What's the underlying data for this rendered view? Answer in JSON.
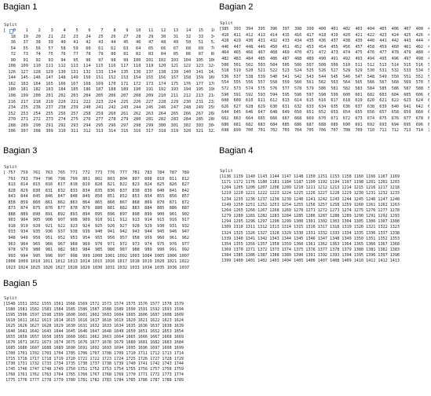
{
  "sections": [
    {
      "title": "Bagian 1",
      "label": "Split",
      "rows": [
        "[   0    1    2    3    4    5    6    7    8    9   10   11   12   13   14   15   16   17",
        "   18   19   20   21   22   23   24   25   26   27   28   29   30   31   32   33   34   35",
        "   36   37   38   39   40   41   42   43   44   45   46   47   48   49   50   51   52   53",
        "   54   55   56   57   58   59   60   61   62   63   64   65   66   67   68   69   70   71",
        "   72   73   74   75   76   77   78   79   80   81   82   83   84   85   86   87   88   89",
        "   90   91   92   93   94   95   96   97   98   99  100  101  102  103  104  105  106  107",
        "  108  109  110  111  112  113  114  115  116  117  118  119  120  121  122  123  124  125",
        "  126  127  128  129  130  131  132  133  134  135  136  137  138  139  140  141  142  143",
        "  144  145  146  147  148  149  150  151  152  153  154  155  156  157  158  159  160  161",
        "  162  163  164  165  166  167  168  169  170  171  172  173  174  175  176  177  178  179",
        "  180  181  182  183  184  185  186  187  188  189  190  191  192  193  194  195  196  197",
        "  198  199  200  201  202  203  204  205  206  207  208  209  210  211  212  213  214  215",
        "  216  217  218  219  220  221  222  223  224  225  226  227  228  229  230  231  232  233",
        "  234  235  236  237  238  239  240  241  242  243  244  245  246  247  248  249  250  251",
        "  252  253  254  255  256  257  258  259  260  261  262  263  264  265  266  267  268  269",
        "  270  271  272  273  274  275  276  277  278  279  280  281  282  283  284  285  286  287",
        "  288  289  290  291  292  293  294  295  296  297  298  299  300  301  302  303  304  305",
        "  306  307  308  309  310  311  312  313  314  315  316  317  318  319  320  321  322  323"
      ]
    },
    {
      "title": "Bagian 2",
      "label": "Split",
      "rows": [
        "[385  393  394  395  396  397  398  399  400  401  402  403  404  405  406  407  408  409",
        " 410  411  412  413  414  415  416  417  418  419  420  421  422  423  424  425  426  427",
        " 428  429  430  431  432  433  434  435  436  437  438  439  440  441  442  443  444  445",
        " 446  447  448  449  450  451  452  453  454  455  456  457  458  459  460  461  462  463",
        " 464  465  466  467  468  469  470  471  472  473  474  475  476  477  478  479  480  481",
        " 482  483  484  485  486  487  488  489  490  491  492  493  494  495  496  497  498  499",
        " 500  501  502  503  504  505  506  507  508  509  510  511  512  513  514  515  516  517",
        " 518  519  520  521  522  523  524  525  526  527  528  529  530  531  532  533  534  535",
        " 536  537  538  539  540  541  542  543  544  545  546  547  548  549  550  551  552  553",
        " 554  555  556  557  558  559  560  561  562  563  564  565  566  567  568  569  570  571",
        " 572  573  574  575  576  577  578  579  580  581  582  583  584  585  586  587  588  589",
        " 590  591  592  593  594  595  596  597  598  599  600  601  602  603  604  605  606  607",
        " 608  609  610  611  612  613  614  615  616  617  618  619  620  621  622  623  624  625",
        " 626  627  628  629  630  631  632  633  634  635  636  637  638  639  640  641  642  643",
        " 644  645  646  647  648  649  650  651  652  653  654  655  656  657  658  659  660  661",
        " 662  663  664  665  666  667  668  669  670  671  672  673  674  675  676  677  678  679",
        " 680  681  682  683  684  685  686  687  688  689  690  691  692  693  694  695  696  697",
        " 698  699  700  701  702  703  704  705  706  707  708  709  710  711  712  713  714  715"
      ]
    },
    {
      "title": "Bagian 3",
      "label": "Split",
      "rows": [
        "[ 757  759  761  763  765  771  772  773  776  777  781  783  784  787  789",
        "  791  793  794  796  798  799  801  802  803  804  807  808  810  811  812",
        "  813  814  815  816  817  818  819  820  821  822  823  824  825  826  827",
        "  828  829  830  831  832  833  834  835  836  837  838  839  840  841  842",
        "  843  844  845  846  847  848  849  850  851  852  853  854  855  856  857",
        "  858  859  860  861  862  863  864  865  866  867  868  869  870  871  872",
        "  873  874  875  876  877  878  879  880  881  882  883  884  885  886  887",
        "  888  889  890  891  892  893  894  895  896  897  898  899  900  901  902",
        "  903  904  905  906  907  908  909  910  911  912  913  914  915  916  917",
        "  918  919  920  921  922  923  924  925  926  927  928  929  930  931  932",
        "  933  934  935  936  937  938  939  940  941  942  943  944  945  946  947",
        "  948  949  950  951  952  953  954  955  956  957  958  959  960  961  962",
        "  963  964  965  966  967  968  969  970  971  972  973  974  975  976  977",
        "  978  979  980  981  982  983  984  985  986  987  988  989  990  991  992",
        "  993  994  995  996  997  998  999 1000 1001 1002 1003 1004 1005 1006 1007",
        " 1008 1009 1010 1011 1012 1013 1014 1015 1016 1017 1018 1019 1020 1021 1022",
        " 1023 1024 1025 1026 1027 1028 1029 1030 1031 1032 1033 1034 1035 1036 1037"
      ]
    },
    {
      "title": "Bagian 4",
      "label": "Split",
      "rows": [
        "[1136 1139 1140 1143 1144 1147 1148 1150 1151 1153 1158 1160 1166 1167 1169",
        " 1171 1172 1176 1180 1181 1184 1187 1190 1192 1194 1197 1198 1201 1202 1203",
        " 1204 1205 1206 1207 1208 1209 1210 1211 1212 1213 1214 1215 1216 1217 1218",
        " 1219 1220 1221 1222 1223 1224 1225 1226 1227 1228 1229 1230 1231 1232 1233",
        " 1234 1235 1236 1237 1238 1239 1240 1241 1242 1243 1244 1245 1246 1247 1248",
        " 1249 1250 1251 1252 1253 1254 1255 1256 1257 1258 1259 1260 1261 1262 1263",
        " 1264 1265 1266 1267 1268 1269 1270 1271 1272 1273 1274 1275 1276 1277 1278",
        " 1279 1280 1281 1282 1283 1284 1285 1286 1287 1288 1289 1290 1291 1292 1293",
        " 1294 1295 1296 1297 1298 1299 1300 1301 1302 1303 1304 1305 1306 1307 1308",
        " 1309 1310 1311 1312 1313 1314 1315 1316 1317 1318 1319 1320 1321 1322 1323",
        " 1324 1325 1326 1327 1328 1329 1330 1331 1332 1333 1334 1335 1336 1337 1338",
        " 1339 1340 1341 1342 1343 1344 1345 1346 1347 1348 1349 1350 1351 1352 1353",
        " 1354 1355 1356 1357 1358 1359 1360 1361 1362 1363 1364 1365 1366 1367 1368",
        " 1369 1370 1371 1372 1373 1374 1375 1376 1377 1378 1379 1380 1381 1382 1383",
        " 1384 1385 1386 1387 1388 1389 1390 1391 1392 1393 1394 1395 1396 1397 1398",
        " 1399 1400 1401 1402 1403 1404 1405 1406 1407 1408 1409 1410 1411 1412 1413"
      ]
    },
    {
      "title": "Bagian 5",
      "label": "Split",
      "rows": [
        "[1548 1551 1552 1555 1561 1566 1569 1572 1573 1574 1575 1576 1577 1578 1579",
        " 1580 1581 1582 1583 1584 1585 1586 1587 1588 1589 1590 1591 1592 1593 1594",
        " 1595 1596 1597 1598 1599 1600 1601 1602 1603 1604 1605 1606 1607 1608 1609",
        " 1610 1611 1612 1613 1614 1615 1616 1617 1618 1619 1620 1621 1622 1623 1624",
        " 1625 1626 1627 1628 1629 1630 1631 1632 1633 1634 1635 1636 1637 1638 1639",
        " 1640 1641 1642 1643 1644 1645 1646 1647 1648 1649 1650 1651 1652 1653 1654",
        " 1655 1656 1657 1658 1659 1660 1661 1662 1663 1664 1665 1666 1667 1668 1669",
        " 1670 1671 1672 1673 1674 1675 1676 1677 1678 1679 1680 1681 1682 1683 1684",
        " 1685 1686 1687 1688 1689 1690 1691 1692 1693 1694 1695 1696 1697 1698 1699",
        " 1700 1701 1702 1703 1704 1705 1706 1707 1708 1709 1710 1711 1712 1713 1714",
        " 1715 1716 1717 1718 1719 1720 1721 1722 1723 1724 1725 1726 1727 1728 1729",
        " 1730 1731 1732 1733 1734 1735 1736 1737 1738 1739 1740 1741 1742 1743 1744",
        " 1745 1746 1747 1748 1749 1750 1751 1752 1753 1754 1755 1756 1757 1758 1759",
        " 1760 1761 1762 1763 1764 1765 1766 1767 1768 1769 1770 1771 1772 1773 1774",
        " 1775 1776 1777 1778 1779 1780 1781 1782 1783 1784 1785 1786 1787 1788 1789"
      ]
    }
  ]
}
